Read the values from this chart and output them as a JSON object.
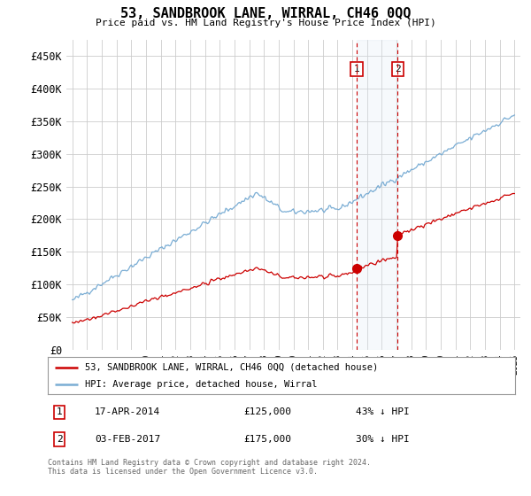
{
  "title": "53, SANDBROOK LANE, WIRRAL, CH46 0QQ",
  "subtitle": "Price paid vs. HM Land Registry's House Price Index (HPI)",
  "hpi_color": "#7aadd4",
  "price_color": "#cc0000",
  "vspan_color": "#dce8f5",
  "vline_color": "#cc0000",
  "annotation_border_color": "#cc0000",
  "ylim": [
    0,
    475000
  ],
  "yticks": [
    0,
    50000,
    100000,
    150000,
    200000,
    250000,
    300000,
    350000,
    400000,
    450000
  ],
  "ytick_labels": [
    "£0",
    "£50K",
    "£100K",
    "£150K",
    "£200K",
    "£250K",
    "£300K",
    "£350K",
    "£400K",
    "£450K"
  ],
  "legend_line1": "53, SANDBROOK LANE, WIRRAL, CH46 0QQ (detached house)",
  "legend_line2": "HPI: Average price, detached house, Wirral",
  "annotation1_label": "1",
  "annotation1_date": "17-APR-2014",
  "annotation1_price": "£125,000",
  "annotation1_hpi": "43% ↓ HPI",
  "annotation2_label": "2",
  "annotation2_date": "03-FEB-2017",
  "annotation2_price": "£175,000",
  "annotation2_hpi": "30% ↓ HPI",
  "footer": "Contains HM Land Registry data © Crown copyright and database right 2024.\nThis data is licensed under the Open Government Licence v3.0.",
  "background_color": "#ffffff",
  "grid_color": "#cccccc",
  "sale1_year": 2014.29,
  "sale2_year": 2017.08,
  "sale1_price": 125000,
  "sale2_price": 175000
}
